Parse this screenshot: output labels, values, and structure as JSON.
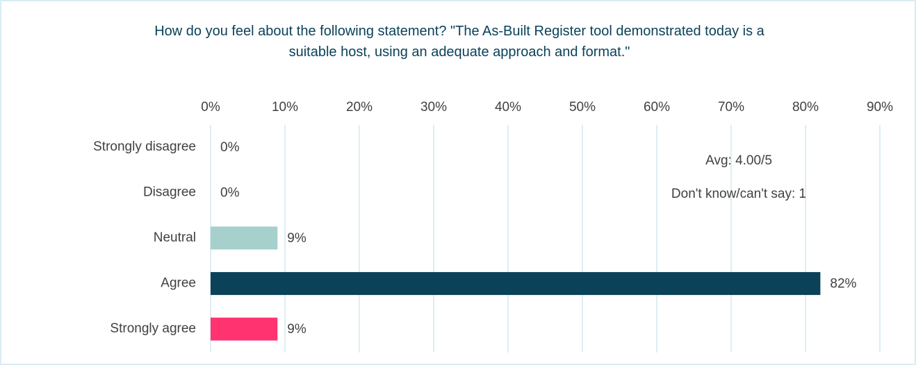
{
  "chart_data": {
    "type": "hbar",
    "title": "How do you feel about the following statement? \"The As-Built Register tool demonstrated today is a suitable host, using an adequate approach and format.\"",
    "categories": [
      "Strongly disagree",
      "Disagree",
      "Neutral",
      "Agree",
      "Strongly agree"
    ],
    "values": [
      0,
      0,
      9,
      82,
      9
    ],
    "value_labels": [
      "0%",
      "0%",
      "9%",
      "82%",
      "9%"
    ],
    "colors": [
      "#a5d0cc",
      "#a5d0cc",
      "#a5d0cc",
      "#0b4159",
      "#ff3370"
    ],
    "xlim": [
      0,
      90
    ],
    "xticks": [
      {
        "value": 0,
        "label": "0%"
      },
      {
        "value": 10,
        "label": "10%"
      },
      {
        "value": 20,
        "label": "20%"
      },
      {
        "value": 30,
        "label": "30%"
      },
      {
        "value": 40,
        "label": "40%"
      },
      {
        "value": 50,
        "label": "50%"
      },
      {
        "value": 60,
        "label": "60%"
      },
      {
        "value": 70,
        "label": "70%"
      },
      {
        "value": 80,
        "label": "80%"
      },
      {
        "value": 90,
        "label": "90%"
      }
    ],
    "grid": true,
    "annotations": [
      "Avg: 4.00/5",
      "Don't know/can't say: 1"
    ]
  }
}
